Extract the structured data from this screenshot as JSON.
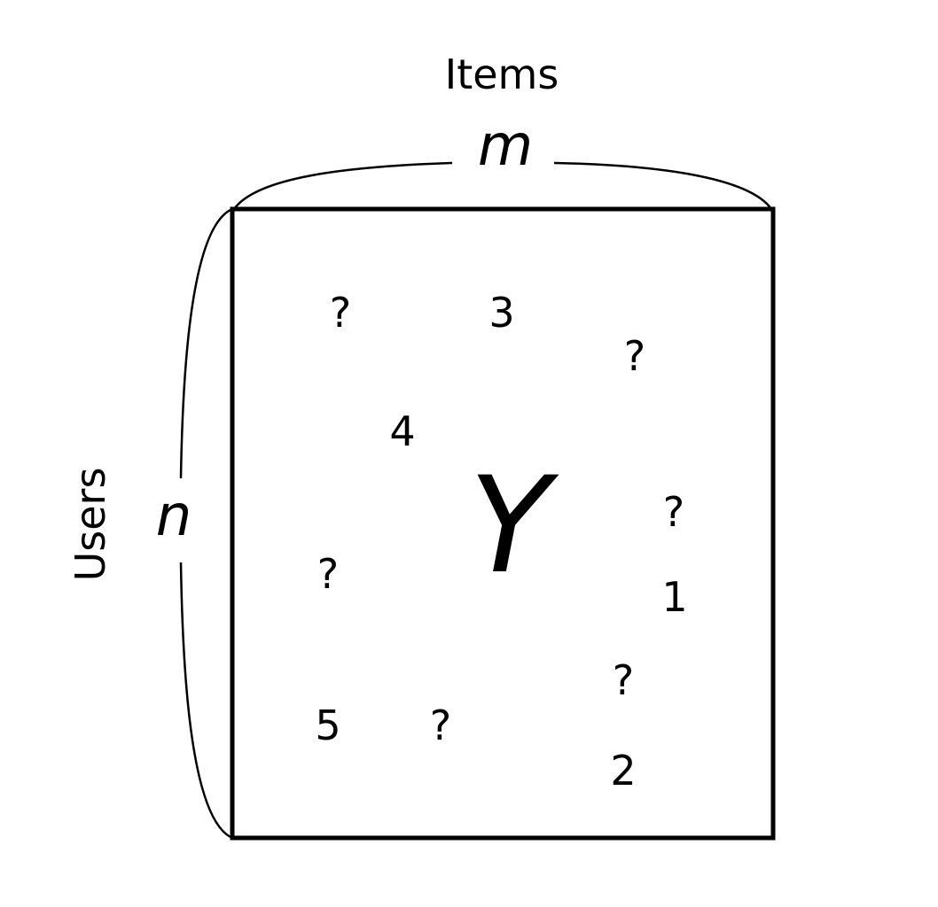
{
  "diagram": {
    "items_label": "Items",
    "users_label": "Users",
    "m_label": "m",
    "n_label": "n",
    "matrix_label": "Y",
    "cells": [
      "?",
      "3",
      "?",
      "4",
      "?",
      "?",
      "1",
      "?",
      "5",
      "?",
      "2"
    ]
  }
}
